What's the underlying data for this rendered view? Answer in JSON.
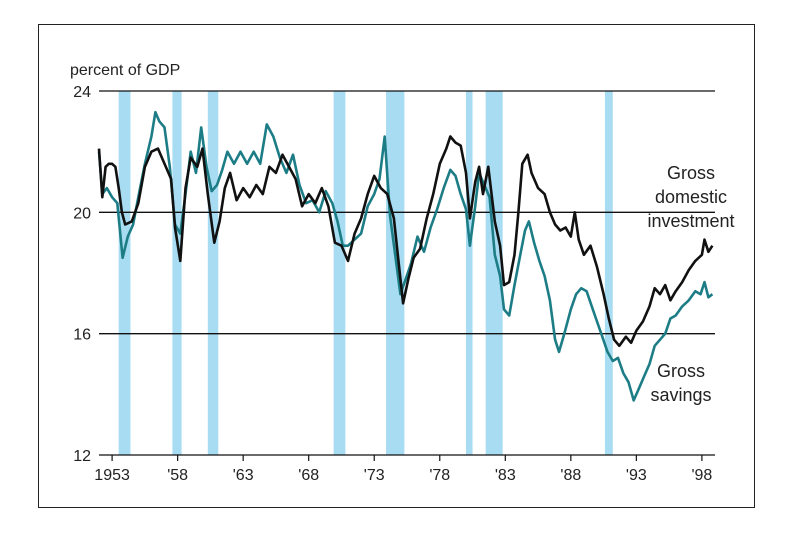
{
  "chart_data": {
    "type": "line",
    "y_axis_label": "percent of GDP",
    "ylim": [
      12,
      24
    ],
    "y_ticks": [
      12,
      16,
      20,
      24
    ],
    "xlim": [
      1952.0,
      1999.0
    ],
    "x_ticks": [
      {
        "value": 1953,
        "label": "1953"
      },
      {
        "value": 1958,
        "label": "'58"
      },
      {
        "value": 1963,
        "label": "'63"
      },
      {
        "value": 1968,
        "label": "'68"
      },
      {
        "value": 1973,
        "label": "'73"
      },
      {
        "value": 1978,
        "label": "'78"
      },
      {
        "value": 1983,
        "label": "'83"
      },
      {
        "value": 1988,
        "label": "'88"
      },
      {
        "value": 1993,
        "label": "'93"
      },
      {
        "value": 1998,
        "label": "'98"
      }
    ],
    "recessions": [
      [
        1953.5,
        1954.4
      ],
      [
        1957.6,
        1958.3
      ],
      [
        1960.3,
        1961.1
      ],
      [
        1969.9,
        1970.8
      ],
      [
        1973.9,
        1975.3
      ],
      [
        1980.0,
        1980.5
      ],
      [
        1981.5,
        1982.8
      ],
      [
        1990.6,
        1991.2
      ]
    ],
    "annotations": {
      "investment": [
        "Gross",
        "domestic",
        "investment"
      ],
      "savings": [
        "Gross",
        "savings"
      ]
    },
    "series": [
      {
        "name": "Gross domestic investment",
        "color": "#111111",
        "points": [
          [
            1952.0,
            22.1
          ],
          [
            1952.25,
            20.5
          ],
          [
            1952.5,
            21.5
          ],
          [
            1952.75,
            21.6
          ],
          [
            1953.0,
            21.6
          ],
          [
            1953.25,
            21.5
          ],
          [
            1953.5,
            20.8
          ],
          [
            1953.75,
            20.0
          ],
          [
            1954.0,
            19.6
          ],
          [
            1954.5,
            19.7
          ],
          [
            1955.0,
            20.3
          ],
          [
            1955.5,
            21.5
          ],
          [
            1956.0,
            22.0
          ],
          [
            1956.5,
            22.1
          ],
          [
            1957.0,
            21.6
          ],
          [
            1957.5,
            21.1
          ],
          [
            1957.8,
            19.5
          ],
          [
            1958.2,
            18.4
          ],
          [
            1958.6,
            20.8
          ],
          [
            1959.0,
            21.8
          ],
          [
            1959.5,
            21.5
          ],
          [
            1959.9,
            22.1
          ],
          [
            1960.3,
            20.6
          ],
          [
            1960.8,
            19.0
          ],
          [
            1961.2,
            19.7
          ],
          [
            1961.6,
            20.8
          ],
          [
            1962.0,
            21.3
          ],
          [
            1962.5,
            20.4
          ],
          [
            1963.0,
            20.8
          ],
          [
            1963.5,
            20.5
          ],
          [
            1964.0,
            20.9
          ],
          [
            1964.5,
            20.6
          ],
          [
            1965.0,
            21.5
          ],
          [
            1965.5,
            21.3
          ],
          [
            1966.0,
            21.9
          ],
          [
            1966.5,
            21.5
          ],
          [
            1967.0,
            21.1
          ],
          [
            1967.5,
            20.2
          ],
          [
            1968.0,
            20.6
          ],
          [
            1968.5,
            20.3
          ],
          [
            1969.0,
            20.8
          ],
          [
            1969.5,
            20.2
          ],
          [
            1970.0,
            19.0
          ],
          [
            1970.5,
            18.9
          ],
          [
            1971.0,
            18.4
          ],
          [
            1971.5,
            19.3
          ],
          [
            1972.0,
            19.8
          ],
          [
            1972.5,
            20.6
          ],
          [
            1973.0,
            21.2
          ],
          [
            1973.5,
            20.8
          ],
          [
            1974.0,
            20.6
          ],
          [
            1974.5,
            19.8
          ],
          [
            1974.8,
            18.6
          ],
          [
            1975.2,
            17.0
          ],
          [
            1975.6,
            17.8
          ],
          [
            1976.0,
            18.5
          ],
          [
            1976.5,
            18.8
          ],
          [
            1977.0,
            19.8
          ],
          [
            1977.5,
            20.6
          ],
          [
            1978.0,
            21.6
          ],
          [
            1978.5,
            22.1
          ],
          [
            1978.8,
            22.5
          ],
          [
            1979.2,
            22.3
          ],
          [
            1979.6,
            22.2
          ],
          [
            1980.0,
            21.3
          ],
          [
            1980.3,
            19.8
          ],
          [
            1980.7,
            21.0
          ],
          [
            1981.0,
            21.5
          ],
          [
            1981.3,
            20.6
          ],
          [
            1981.7,
            21.5
          ],
          [
            1982.2,
            19.7
          ],
          [
            1982.6,
            18.9
          ],
          [
            1982.9,
            17.6
          ],
          [
            1983.3,
            17.7
          ],
          [
            1983.7,
            18.6
          ],
          [
            1984.0,
            20.0
          ],
          [
            1984.3,
            21.6
          ],
          [
            1984.7,
            21.9
          ],
          [
            1985.0,
            21.3
          ],
          [
            1985.5,
            20.8
          ],
          [
            1986.0,
            20.6
          ],
          [
            1986.4,
            20.0
          ],
          [
            1986.8,
            19.6
          ],
          [
            1987.2,
            19.4
          ],
          [
            1987.6,
            19.5
          ],
          [
            1988.0,
            19.2
          ],
          [
            1988.3,
            20.0
          ],
          [
            1988.6,
            19.1
          ],
          [
            1989.0,
            18.6
          ],
          [
            1989.5,
            18.9
          ],
          [
            1990.0,
            18.2
          ],
          [
            1990.5,
            17.3
          ],
          [
            1990.9,
            16.5
          ],
          [
            1991.3,
            15.8
          ],
          [
            1991.7,
            15.6
          ],
          [
            1992.2,
            15.9
          ],
          [
            1992.6,
            15.7
          ],
          [
            1993.0,
            16.1
          ],
          [
            1993.5,
            16.4
          ],
          [
            1994.0,
            16.9
          ],
          [
            1994.4,
            17.5
          ],
          [
            1994.8,
            17.3
          ],
          [
            1995.2,
            17.6
          ],
          [
            1995.6,
            17.1
          ],
          [
            1996.0,
            17.4
          ],
          [
            1996.5,
            17.7
          ],
          [
            1997.0,
            18.1
          ],
          [
            1997.5,
            18.4
          ],
          [
            1998.0,
            18.6
          ],
          [
            1998.2,
            19.1
          ],
          [
            1998.5,
            18.7
          ],
          [
            1998.8,
            18.9
          ]
        ]
      },
      {
        "name": "Gross savings",
        "color": "#1d7d86",
        "points": [
          [
            1952.0,
            22.0
          ],
          [
            1952.25,
            20.6
          ],
          [
            1952.6,
            20.8
          ],
          [
            1953.0,
            20.5
          ],
          [
            1953.4,
            20.3
          ],
          [
            1953.8,
            18.5
          ],
          [
            1954.2,
            19.2
          ],
          [
            1954.6,
            19.6
          ],
          [
            1955.0,
            20.5
          ],
          [
            1955.5,
            21.6
          ],
          [
            1956.0,
            22.5
          ],
          [
            1956.3,
            23.3
          ],
          [
            1956.6,
            23.0
          ],
          [
            1957.0,
            22.8
          ],
          [
            1957.4,
            21.5
          ],
          [
            1957.8,
            19.6
          ],
          [
            1958.2,
            19.3
          ],
          [
            1958.6,
            20.6
          ],
          [
            1959.0,
            22.0
          ],
          [
            1959.4,
            21.3
          ],
          [
            1959.8,
            22.8
          ],
          [
            1960.2,
            21.5
          ],
          [
            1960.6,
            20.7
          ],
          [
            1961.0,
            20.9
          ],
          [
            1961.4,
            21.4
          ],
          [
            1961.8,
            22.0
          ],
          [
            1962.3,
            21.6
          ],
          [
            1962.8,
            22.0
          ],
          [
            1963.3,
            21.6
          ],
          [
            1963.8,
            22.0
          ],
          [
            1964.3,
            21.6
          ],
          [
            1964.8,
            22.9
          ],
          [
            1965.3,
            22.5
          ],
          [
            1965.8,
            21.8
          ],
          [
            1966.3,
            21.3
          ],
          [
            1966.8,
            21.9
          ],
          [
            1967.3,
            20.9
          ],
          [
            1967.8,
            20.3
          ],
          [
            1968.3,
            20.4
          ],
          [
            1968.8,
            20.0
          ],
          [
            1969.3,
            20.7
          ],
          [
            1969.8,
            20.3
          ],
          [
            1970.2,
            19.7
          ],
          [
            1970.6,
            18.9
          ],
          [
            1971.0,
            18.9
          ],
          [
            1971.5,
            19.1
          ],
          [
            1972.0,
            19.3
          ],
          [
            1972.5,
            20.2
          ],
          [
            1973.0,
            20.6
          ],
          [
            1973.4,
            21.1
          ],
          [
            1973.8,
            22.5
          ],
          [
            1974.2,
            19.9
          ],
          [
            1974.6,
            18.6
          ],
          [
            1975.0,
            17.3
          ],
          [
            1975.4,
            17.8
          ],
          [
            1975.8,
            18.3
          ],
          [
            1976.3,
            19.2
          ],
          [
            1976.8,
            18.7
          ],
          [
            1977.3,
            19.5
          ],
          [
            1977.8,
            20.1
          ],
          [
            1978.3,
            20.8
          ],
          [
            1978.8,
            21.4
          ],
          [
            1979.2,
            21.2
          ],
          [
            1979.6,
            20.6
          ],
          [
            1980.0,
            20.1
          ],
          [
            1980.3,
            18.9
          ],
          [
            1980.7,
            20.2
          ],
          [
            1981.0,
            21.3
          ],
          [
            1981.4,
            20.9
          ],
          [
            1981.8,
            20.5
          ],
          [
            1982.2,
            18.6
          ],
          [
            1982.6,
            17.9
          ],
          [
            1982.9,
            16.8
          ],
          [
            1983.3,
            16.6
          ],
          [
            1983.7,
            17.6
          ],
          [
            1984.1,
            18.5
          ],
          [
            1984.5,
            19.4
          ],
          [
            1984.8,
            19.7
          ],
          [
            1985.2,
            19.0
          ],
          [
            1985.6,
            18.4
          ],
          [
            1986.0,
            17.9
          ],
          [
            1986.4,
            17.1
          ],
          [
            1986.8,
            15.8
          ],
          [
            1987.1,
            15.4
          ],
          [
            1987.5,
            16.0
          ],
          [
            1988.0,
            16.8
          ],
          [
            1988.4,
            17.3
          ],
          [
            1988.8,
            17.5
          ],
          [
            1989.2,
            17.4
          ],
          [
            1989.6,
            16.9
          ],
          [
            1990.0,
            16.4
          ],
          [
            1990.4,
            15.9
          ],
          [
            1990.8,
            15.4
          ],
          [
            1991.2,
            15.1
          ],
          [
            1991.6,
            15.2
          ],
          [
            1992.0,
            14.7
          ],
          [
            1992.4,
            14.4
          ],
          [
            1992.8,
            13.8
          ],
          [
            1993.2,
            14.2
          ],
          [
            1993.6,
            14.6
          ],
          [
            1994.0,
            15.0
          ],
          [
            1994.4,
            15.6
          ],
          [
            1994.8,
            15.8
          ],
          [
            1995.2,
            16.0
          ],
          [
            1995.6,
            16.5
          ],
          [
            1996.0,
            16.6
          ],
          [
            1996.5,
            16.9
          ],
          [
            1997.0,
            17.1
          ],
          [
            1997.5,
            17.4
          ],
          [
            1997.9,
            17.3
          ],
          [
            1998.2,
            17.7
          ],
          [
            1998.5,
            17.2
          ],
          [
            1998.8,
            17.3
          ]
        ]
      }
    ]
  }
}
